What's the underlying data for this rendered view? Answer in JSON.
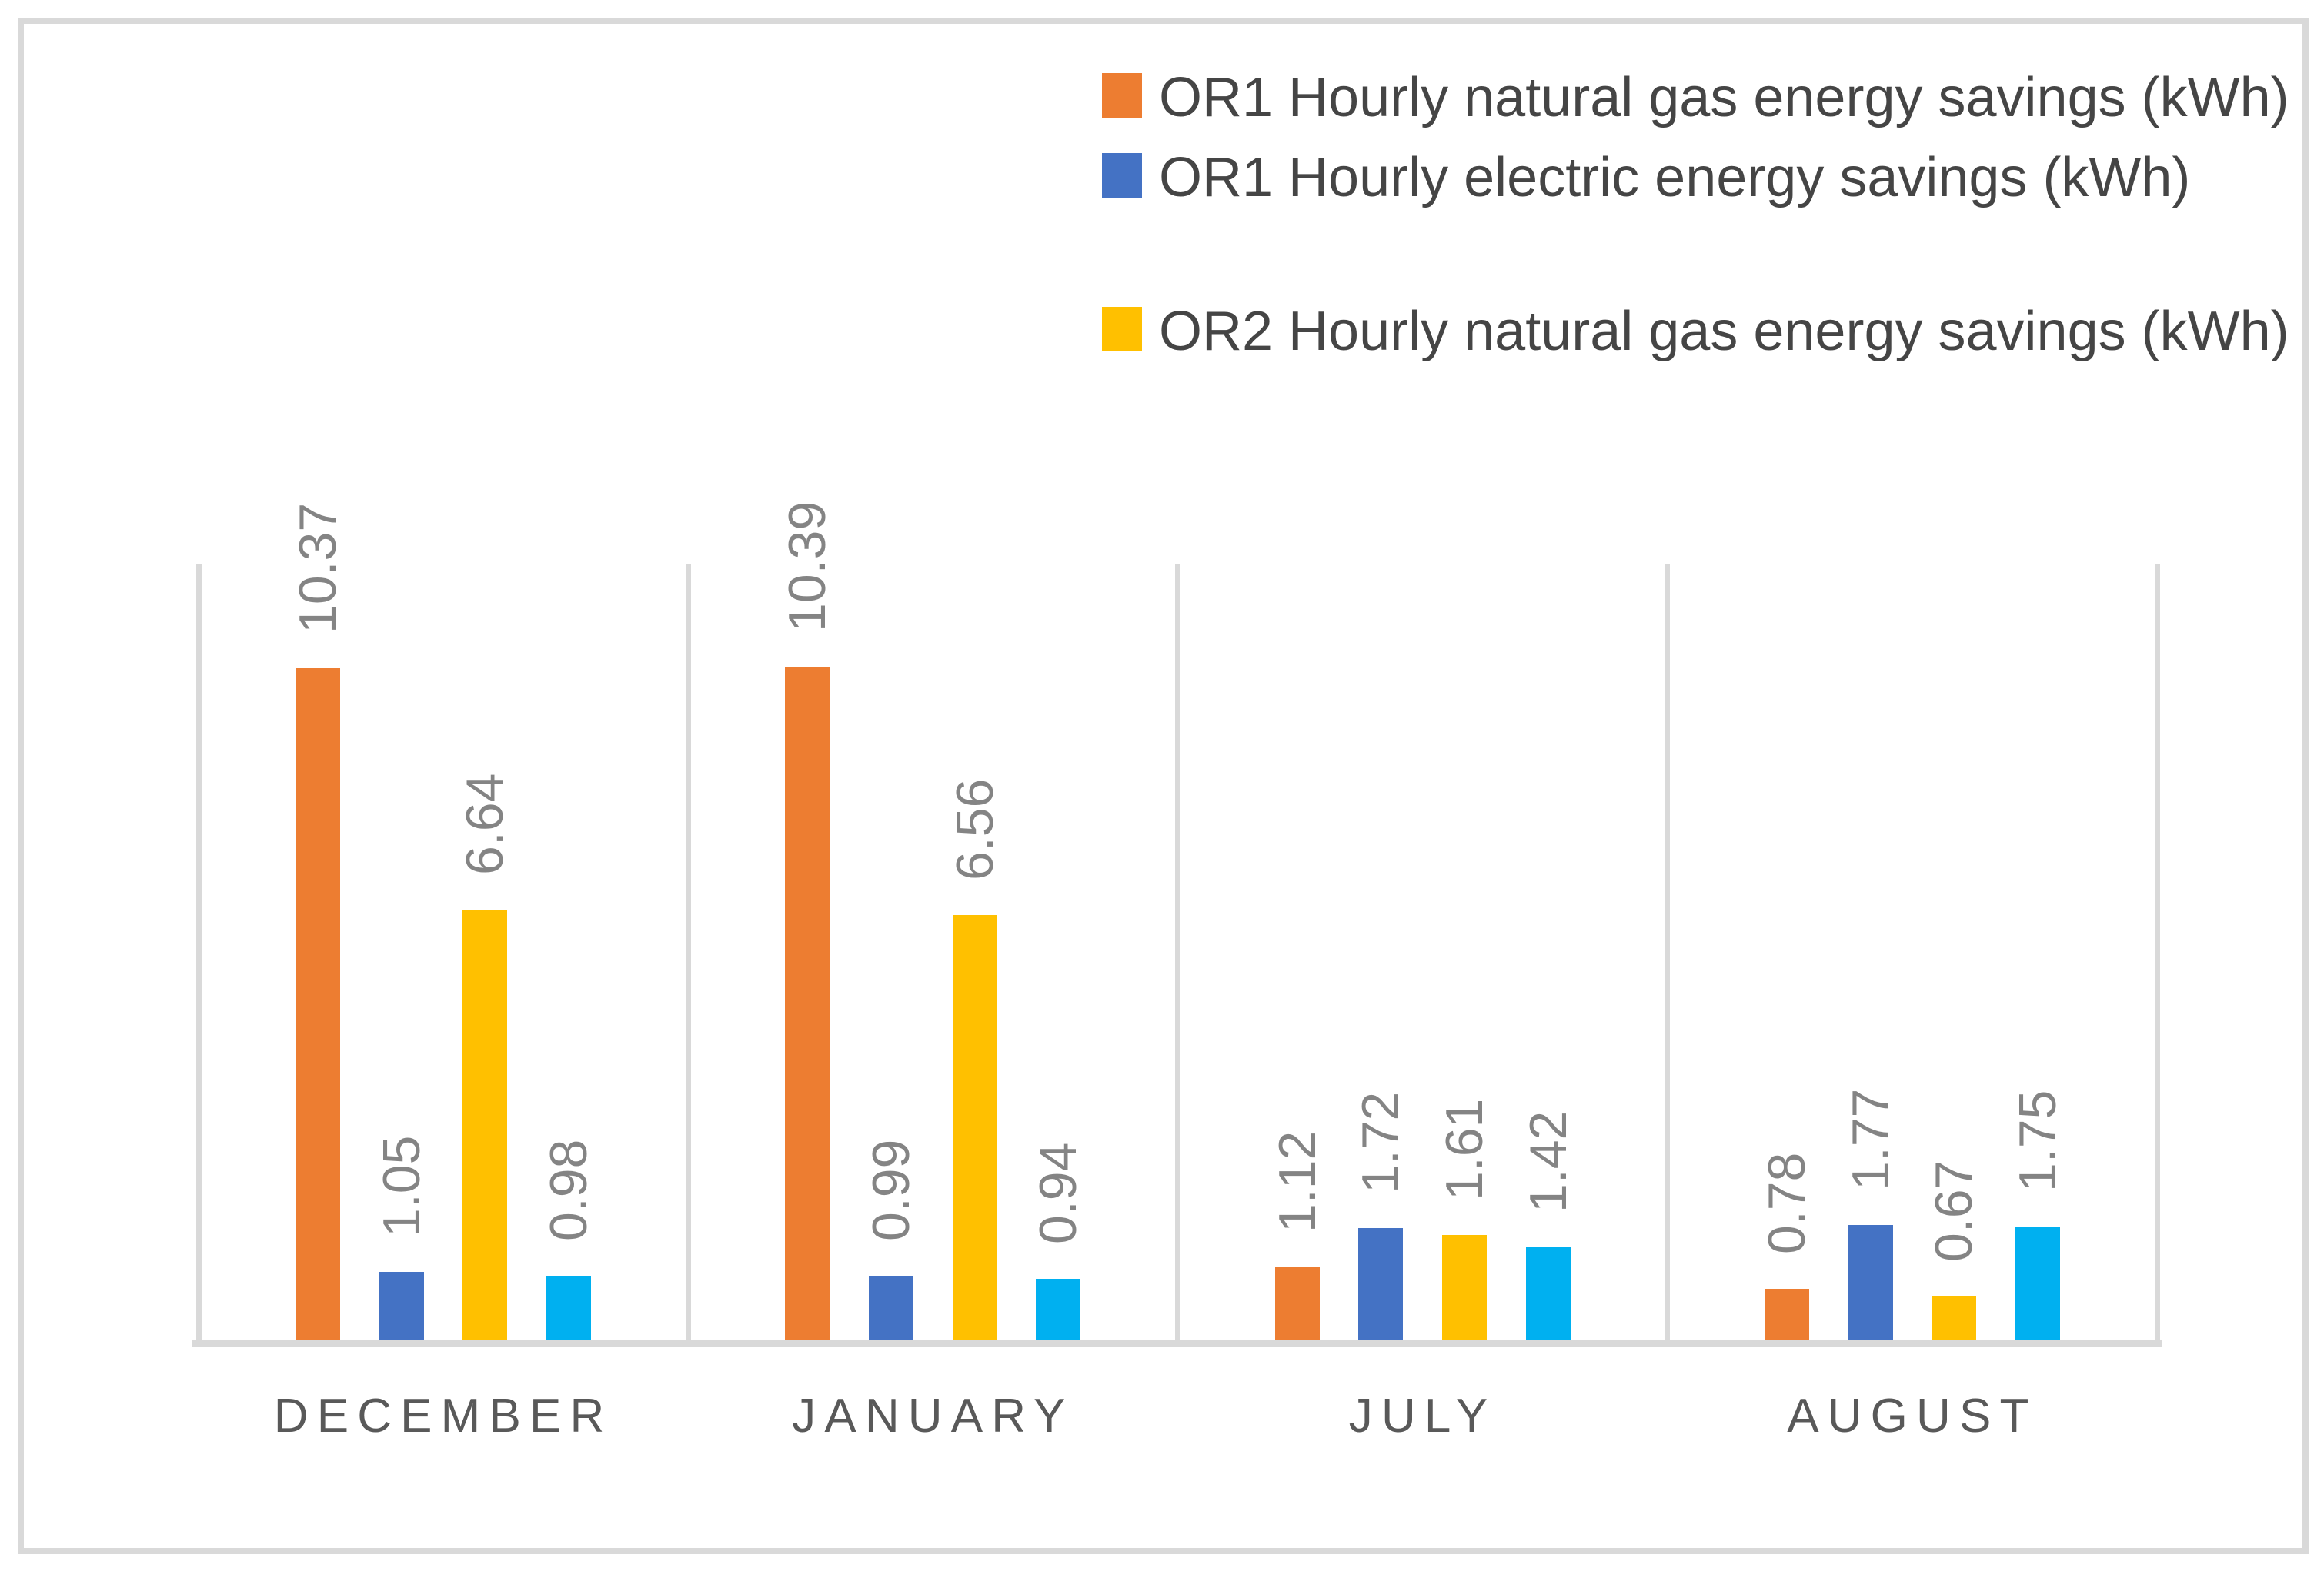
{
  "chart": {
    "background_color": "#FFFFFF",
    "border_color": "#D9D9D9",
    "gridline_color": "#D9D9D9",
    "value_label_color": "#848484",
    "category_label_color": "#595959",
    "legend_text_color": "#454545"
  },
  "legend": {
    "position": "top-right",
    "items": [
      {
        "label": "OR1 Hourly natural gas energy savings (kWh)",
        "color": "#ED7D31"
      },
      {
        "label": "OR1 Hourly electric energy savings (kWh)",
        "color": "#4472C4"
      },
      {
        "label": "OR2 Hourly natural gas energy savings (kWh)",
        "color": "#FFC000"
      }
    ]
  },
  "chart_data": {
    "type": "bar",
    "categories": [
      "DECEMBER",
      "JANUARY",
      "JULY",
      "AUGUST"
    ],
    "series": [
      {
        "legend_label": "OR1 Hourly natural gas energy savings (kWh)",
        "color": "#ED7D31",
        "values": [
          10.37,
          10.39,
          1.12,
          0.78
        ]
      },
      {
        "legend_label": "OR1 Hourly electric energy savings (kWh)",
        "color": "#4472C4",
        "values": [
          1.05,
          0.99,
          1.72,
          1.77
        ]
      },
      {
        "legend_label": "OR2 Hourly natural gas energy savings (kWh)",
        "color": "#FFC000",
        "values": [
          6.64,
          6.56,
          1.61,
          0.67
        ]
      },
      {
        "legend_label": null,
        "color": "#00B0F0",
        "values": [
          0.98,
          0.94,
          1.42,
          1.75
        ]
      }
    ],
    "data_label_decimals": 2,
    "data_label_rotation_degrees": -90,
    "ylim": [
      0,
      10.6
    ],
    "value_axis_visible": false,
    "gridlines": "vertical-category-separators-only",
    "title": ""
  }
}
